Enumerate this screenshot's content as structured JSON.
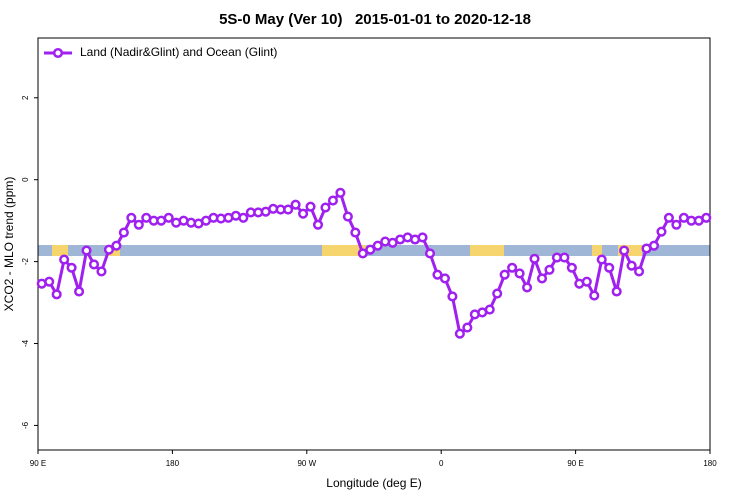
{
  "chart_data": {
    "type": "line",
    "title": "5S-0 May (Ver 10)   2015-01-01 to 2020-12-18",
    "xlabel": "Longitude (deg E)",
    "ylabel": "XCO2 - MLO trend (ppm)",
    "xlim": [
      90,
      540
    ],
    "ylim": [
      -6.6,
      3.46
    ],
    "xticks": [
      {
        "value": 90,
        "label": "90 E"
      },
      {
        "value": 180,
        "label": "180"
      },
      {
        "value": 270,
        "label": "90 W"
      },
      {
        "value": 360,
        "label": "0"
      },
      {
        "value": 450,
        "label": "90 E"
      },
      {
        "value": 540,
        "label": "180"
      }
    ],
    "yticks": [
      2,
      0,
      -2,
      -4,
      -6
    ],
    "legend": "top-left",
    "x": [
      92.5,
      97.5,
      102.5,
      107.5,
      112.5,
      117.5,
      122.5,
      127.5,
      132.5,
      137.5,
      142.5,
      147.5,
      152.5,
      157.5,
      162.5,
      167.5,
      172.5,
      177.5,
      182.5,
      187.5,
      192.5,
      197.5,
      202.5,
      207.5,
      212.5,
      217.5,
      222.5,
      227.5,
      232.5,
      237.5,
      242.5,
      247.5,
      252.5,
      257.5,
      262.5,
      267.5,
      272.5,
      277.5,
      282.5,
      287.5,
      292.5,
      297.5,
      302.5,
      307.5,
      312.5,
      317.5,
      322.5,
      327.5,
      332.5,
      337.5,
      342.5,
      347.5,
      352.5,
      357.5,
      362.5,
      367.5,
      372.5,
      377.5,
      382.5,
      387.5,
      392.5,
      397.5,
      402.5,
      407.5,
      412.5,
      417.5,
      422.5,
      427.5,
      432.5,
      437.5,
      442.5,
      447.5,
      452.5,
      457.5,
      462.5,
      467.5,
      472.5,
      477.5,
      482.5,
      487.5,
      492.5,
      497.5,
      502.5,
      507.5,
      512.5,
      517.5,
      522.5,
      527.5,
      532.5,
      537.5
    ],
    "series": [
      {
        "name": "Land (Nadir&Glint) and Ocean (Glint)",
        "color": "#a020f0",
        "values": [
          -2.54,
          -2.49,
          -2.8,
          -1.95,
          -2.15,
          -2.73,
          -1.73,
          -2.07,
          -2.24,
          -1.71,
          -1.61,
          -1.29,
          -0.93,
          -1.1,
          -0.93,
          -1.0,
          -1.0,
          -0.93,
          -1.05,
          -1.0,
          -1.05,
          -1.07,
          -1.0,
          -0.93,
          -0.95,
          -0.93,
          -0.88,
          -0.93,
          -0.8,
          -0.8,
          -0.78,
          -0.71,
          -0.73,
          -0.73,
          -0.61,
          -0.83,
          -0.66,
          -1.1,
          -0.68,
          -0.51,
          -0.32,
          -0.9,
          -1.29,
          -1.8,
          -1.71,
          -1.61,
          -1.51,
          -1.54,
          -1.46,
          -1.41,
          -1.46,
          -1.41,
          -1.8,
          -2.32,
          -2.41,
          -2.85,
          -3.76,
          -3.61,
          -3.29,
          -3.24,
          -3.17,
          -2.78,
          -2.32,
          -2.15,
          -2.29,
          -2.63,
          -1.93,
          -2.41,
          -2.2,
          -1.9,
          -1.9,
          -2.15,
          -2.54,
          -2.49,
          -2.83,
          -1.95,
          -2.15,
          -2.73,
          -1.73,
          -2.1,
          -2.24,
          -1.68,
          -1.61,
          -1.27,
          -0.93,
          -1.1,
          -0.93,
          -1.0,
          -1.0,
          -0.93
        ]
      }
    ]
  }
}
